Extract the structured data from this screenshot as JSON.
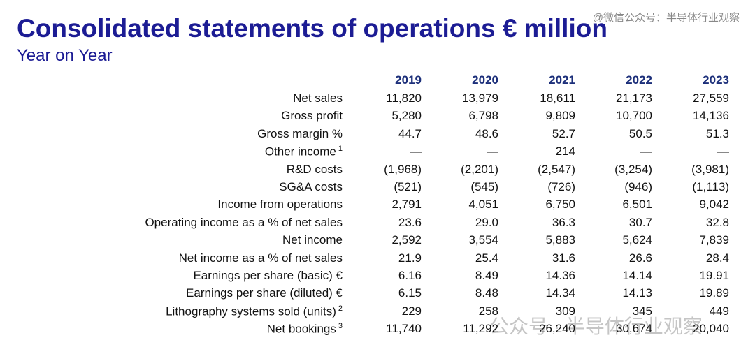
{
  "header": {
    "title": "Consolidated statements of operations € million",
    "subtitle": "Year on Year"
  },
  "watermarks": [
    "@微信公众号：半导体行业观察",
    "公众号 · 半导体行业观察"
  ],
  "table": {
    "columns": [
      "2019",
      "2020",
      "2021",
      "2022",
      "2023"
    ],
    "rows": [
      {
        "label": "Net sales",
        "cells": [
          "11,820",
          "13,979",
          "18,611",
          "21,173",
          "27,559"
        ]
      },
      {
        "label": "Gross profit",
        "cells": [
          "5,280",
          "6,798",
          "9,809",
          "10,700",
          "14,136"
        ]
      },
      {
        "label": "Gross margin %",
        "cells": [
          "44.7",
          "48.6",
          "52.7",
          "50.5",
          "51.3"
        ]
      },
      {
        "label": "Other income",
        "note": "1",
        "cells": [
          "—",
          "—",
          "214",
          "—",
          "—"
        ]
      },
      {
        "label": "R&D costs",
        "cells": [
          "(1,968)",
          "(2,201)",
          "(2,547)",
          "(3,254)",
          "(3,981)"
        ]
      },
      {
        "label": "SG&A costs",
        "cells": [
          "(521)",
          "(545)",
          "(726)",
          "(946)",
          "(1,113)"
        ]
      },
      {
        "label": "Income from operations",
        "cells": [
          "2,791",
          "4,051",
          "6,750",
          "6,501",
          "9,042"
        ]
      },
      {
        "label": "Operating income as a % of net sales",
        "cells": [
          "23.6",
          "29.0",
          "36.3",
          "30.7",
          "32.8"
        ]
      },
      {
        "label": "Net income",
        "cells": [
          "2,592",
          "3,554",
          "5,883",
          "5,624",
          "7,839"
        ]
      },
      {
        "label": "Net income as a % of net sales",
        "cells": [
          "21.9",
          "25.4",
          "31.6",
          "26.6",
          "28.4"
        ]
      },
      {
        "label": "Earnings per share (basic) €",
        "cells": [
          "6.16",
          "8.49",
          "14.36",
          "14.14",
          "19.91"
        ]
      },
      {
        "label": "Earnings per share (diluted) €",
        "cells": [
          "6.15",
          "8.48",
          "14.34",
          "14.13",
          "19.89"
        ]
      },
      {
        "label": "Lithography systems sold (units)",
        "note": "2",
        "cells": [
          "229",
          "258",
          "309",
          "345",
          "449"
        ]
      },
      {
        "label": "Net bookings",
        "note": "3",
        "cells": [
          "11,740",
          "11,292",
          "26,240",
          "30,674",
          "20,040"
        ]
      }
    ]
  }
}
